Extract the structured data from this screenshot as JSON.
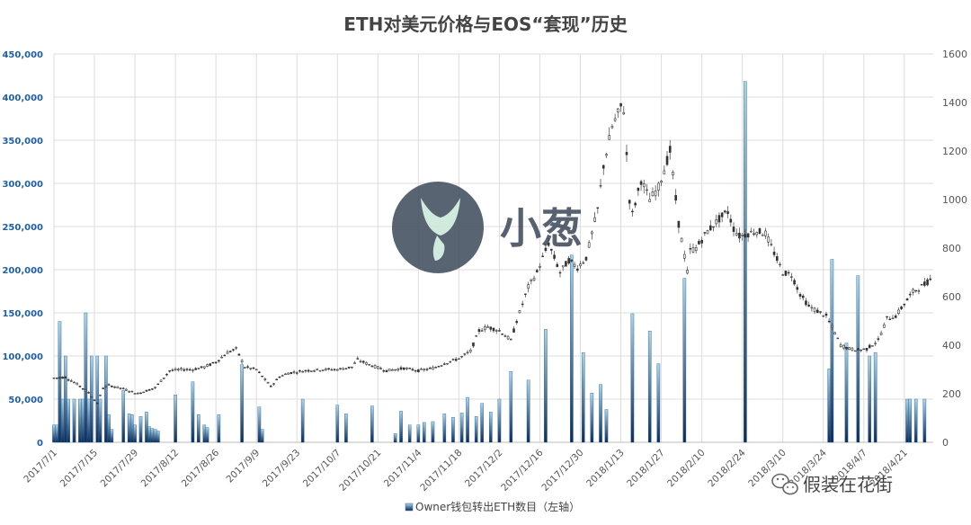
{
  "chart_data": {
    "type": "bar+candlestick",
    "title": "ETH对美元价格与EOS“套现”历史",
    "left_axis": {
      "ticks": [
        "0",
        "50,000",
        "100,000",
        "150,000",
        "200,000",
        "250,000",
        "300,000",
        "350,000",
        "400,000",
        "450,000"
      ],
      "min": 0,
      "max": 450000
    },
    "right_axis": {
      "ticks": [
        "0",
        "200",
        "400",
        "600",
        "800",
        "1000",
        "1200",
        "1400",
        "1600"
      ],
      "min": 0,
      "max": 1600
    },
    "x_start": "2017-07-01",
    "x_end": "2018-05-01",
    "x_tick_labels": [
      "2017/7/1",
      "2017/7/15",
      "2017/7/29",
      "2017/8/12",
      "2017/8/26",
      "2017/9/9",
      "2017/9/23",
      "2017/10/7",
      "2017/10/21",
      "2017/11/4",
      "2017/11/18",
      "2017/12/2",
      "2017/12/16",
      "2017/12/30",
      "2018/1/13",
      "2018/1/27",
      "2018/2/10",
      "2018/2/24",
      "2018/3/10",
      "2018/3/24",
      "2018/4/7",
      "2018/4/21"
    ],
    "grid": true,
    "legend": {
      "position": "bottom",
      "label": "Owner钱包转出ETH数目（左轴）"
    },
    "bar_color_top": "#a9d4ea",
    "bar_color_bottom": "#0b2d5c",
    "candle_color": "#555555",
    "bars": [
      [
        "2017-07-01",
        20000
      ],
      [
        "2017-07-02",
        20000
      ],
      [
        "2017-07-03",
        140000
      ],
      [
        "2017-07-04",
        50000
      ],
      [
        "2017-07-05",
        100000
      ],
      [
        "2017-07-06",
        50000
      ],
      [
        "2017-07-08",
        50000
      ],
      [
        "2017-07-10",
        50000
      ],
      [
        "2017-07-11",
        50000
      ],
      [
        "2017-07-12",
        150000
      ],
      [
        "2017-07-13",
        50000
      ],
      [
        "2017-07-14",
        100000
      ],
      [
        "2017-07-16",
        100000
      ],
      [
        "2017-07-17",
        50000
      ],
      [
        "2017-07-19",
        100000
      ],
      [
        "2017-07-20",
        32000
      ],
      [
        "2017-07-21",
        15000
      ],
      [
        "2017-07-25",
        60000
      ],
      [
        "2017-07-27",
        33000
      ],
      [
        "2017-07-28",
        32000
      ],
      [
        "2017-07-29",
        20000
      ],
      [
        "2017-07-31",
        30000
      ],
      [
        "2017-08-02",
        35000
      ],
      [
        "2017-08-03",
        18000
      ],
      [
        "2017-08-04",
        16000
      ],
      [
        "2017-08-05",
        15000
      ],
      [
        "2017-08-06",
        13000
      ],
      [
        "2017-08-12",
        55000
      ],
      [
        "2017-08-18",
        70000
      ],
      [
        "2017-08-20",
        32000
      ],
      [
        "2017-08-22",
        20000
      ],
      [
        "2017-08-23",
        17000
      ],
      [
        "2017-08-27",
        32000
      ],
      [
        "2017-09-04",
        90000
      ],
      [
        "2017-09-10",
        41000
      ],
      [
        "2017-09-11",
        15000
      ],
      [
        "2017-09-25",
        50000
      ],
      [
        "2017-10-07",
        43000
      ],
      [
        "2017-10-10",
        33000
      ],
      [
        "2017-10-19",
        42000
      ],
      [
        "2017-10-27",
        10000
      ],
      [
        "2017-10-29",
        36000
      ],
      [
        "2017-11-01",
        20000
      ],
      [
        "2017-11-04",
        20000
      ],
      [
        "2017-11-06",
        23000
      ],
      [
        "2017-11-09",
        24000
      ],
      [
        "2017-11-13",
        33000
      ],
      [
        "2017-11-16",
        29000
      ],
      [
        "2017-11-19",
        34000
      ],
      [
        "2017-11-21",
        52000
      ],
      [
        "2017-11-24",
        30000
      ],
      [
        "2017-11-26",
        45000
      ],
      [
        "2017-11-29",
        35000
      ],
      [
        "2017-12-02",
        50000
      ],
      [
        "2017-12-06",
        82000
      ],
      [
        "2017-12-12",
        72000
      ],
      [
        "2017-12-18",
        131000
      ],
      [
        "2017-12-27",
        217000
      ],
      [
        "2017-12-31",
        104000
      ],
      [
        "2018-01-03",
        57000
      ],
      [
        "2018-01-06",
        67000
      ],
      [
        "2018-01-08",
        38000
      ],
      [
        "2018-01-17",
        149000
      ],
      [
        "2018-01-23",
        129000
      ],
      [
        "2018-01-26",
        91000
      ],
      [
        "2018-02-04",
        190000
      ],
      [
        "2018-02-25",
        418000
      ],
      [
        "2018-03-26",
        85000
      ],
      [
        "2018-03-27",
        212000
      ],
      [
        "2018-04-01",
        115000
      ],
      [
        "2018-04-05",
        193000
      ],
      [
        "2018-04-09",
        100000
      ],
      [
        "2018-04-11",
        104000
      ],
      [
        "2018-04-22",
        50000
      ],
      [
        "2018-04-23",
        50000
      ],
      [
        "2018-04-25",
        50000
      ],
      [
        "2018-04-28",
        50000
      ]
    ],
    "price_anchors": [
      [
        "2017-07-01",
        265
      ],
      [
        "2017-07-05",
        268
      ],
      [
        "2017-07-09",
        240
      ],
      [
        "2017-07-13",
        205
      ],
      [
        "2017-07-16",
        160
      ],
      [
        "2017-07-18",
        225
      ],
      [
        "2017-07-20",
        235
      ],
      [
        "2017-07-25",
        220
      ],
      [
        "2017-07-30",
        200
      ],
      [
        "2017-08-05",
        225
      ],
      [
        "2017-08-10",
        295
      ],
      [
        "2017-08-14",
        300
      ],
      [
        "2017-08-18",
        300
      ],
      [
        "2017-08-22",
        310
      ],
      [
        "2017-08-26",
        330
      ],
      [
        "2017-08-30",
        370
      ],
      [
        "2017-09-02",
        385
      ],
      [
        "2017-09-05",
        310
      ],
      [
        "2017-09-09",
        300
      ],
      [
        "2017-09-14",
        230
      ],
      [
        "2017-09-17",
        270
      ],
      [
        "2017-09-20",
        285
      ],
      [
        "2017-09-26",
        295
      ],
      [
        "2017-10-02",
        300
      ],
      [
        "2017-10-07",
        300
      ],
      [
        "2017-10-12",
        310
      ],
      [
        "2017-10-14",
        340
      ],
      [
        "2017-10-18",
        320
      ],
      [
        "2017-10-24",
        295
      ],
      [
        "2017-10-30",
        305
      ],
      [
        "2017-11-04",
        295
      ],
      [
        "2017-11-09",
        305
      ],
      [
        "2017-11-13",
        325
      ],
      [
        "2017-11-18",
        345
      ],
      [
        "2017-11-22",
        375
      ],
      [
        "2017-11-25",
        460
      ],
      [
        "2017-11-28",
        475
      ],
      [
        "2017-12-02",
        460
      ],
      [
        "2017-12-06",
        420
      ],
      [
        "2017-12-08",
        500
      ],
      [
        "2017-12-12",
        640
      ],
      [
        "2017-12-15",
        700
      ],
      [
        "2017-12-19",
        820
      ],
      [
        "2017-12-23",
        700
      ],
      [
        "2017-12-26",
        750
      ],
      [
        "2017-12-29",
        720
      ],
      [
        "2018-01-01",
        760
      ],
      [
        "2018-01-05",
        960
      ],
      [
        "2018-01-07",
        1140
      ],
      [
        "2018-01-10",
        1300
      ],
      [
        "2018-01-13",
        1380
      ],
      [
        "2018-01-14",
        1370
      ],
      [
        "2018-01-16",
        1000
      ],
      [
        "2018-01-17",
        940
      ],
      [
        "2018-01-20",
        1080
      ],
      [
        "2018-01-23",
        1000
      ],
      [
        "2018-01-26",
        1050
      ],
      [
        "2018-01-30",
        1200
      ],
      [
        "2018-02-02",
        900
      ],
      [
        "2018-02-05",
        700
      ],
      [
        "2018-02-06",
        790
      ],
      [
        "2018-02-08",
        800
      ],
      [
        "2018-02-12",
        870
      ],
      [
        "2018-02-16",
        920
      ],
      [
        "2018-02-19",
        950
      ],
      [
        "2018-02-21",
        880
      ],
      [
        "2018-02-23",
        850
      ],
      [
        "2018-02-26",
        860
      ],
      [
        "2018-03-01",
        870
      ],
      [
        "2018-03-04",
        860
      ],
      [
        "2018-03-07",
        780
      ],
      [
        "2018-03-10",
        700
      ],
      [
        "2018-03-13",
        690
      ],
      [
        "2018-03-16",
        610
      ],
      [
        "2018-03-19",
        560
      ],
      [
        "2018-03-22",
        540
      ],
      [
        "2018-03-25",
        520
      ],
      [
        "2018-03-28",
        450
      ],
      [
        "2018-03-30",
        400
      ],
      [
        "2018-04-02",
        385
      ],
      [
        "2018-04-05",
        380
      ],
      [
        "2018-04-08",
        385
      ],
      [
        "2018-04-12",
        420
      ],
      [
        "2018-04-15",
        510
      ],
      [
        "2018-04-18",
        520
      ],
      [
        "2018-04-21",
        570
      ],
      [
        "2018-04-24",
        620
      ],
      [
        "2018-04-28",
        650
      ],
      [
        "2018-04-30",
        670
      ]
    ]
  },
  "watermark": {
    "brand_text": "小葱"
  },
  "footer": {
    "source_text": "假装在花街"
  },
  "colors": {
    "watermark_circle": "#3b4a5a",
    "grid": "#dddddd"
  }
}
